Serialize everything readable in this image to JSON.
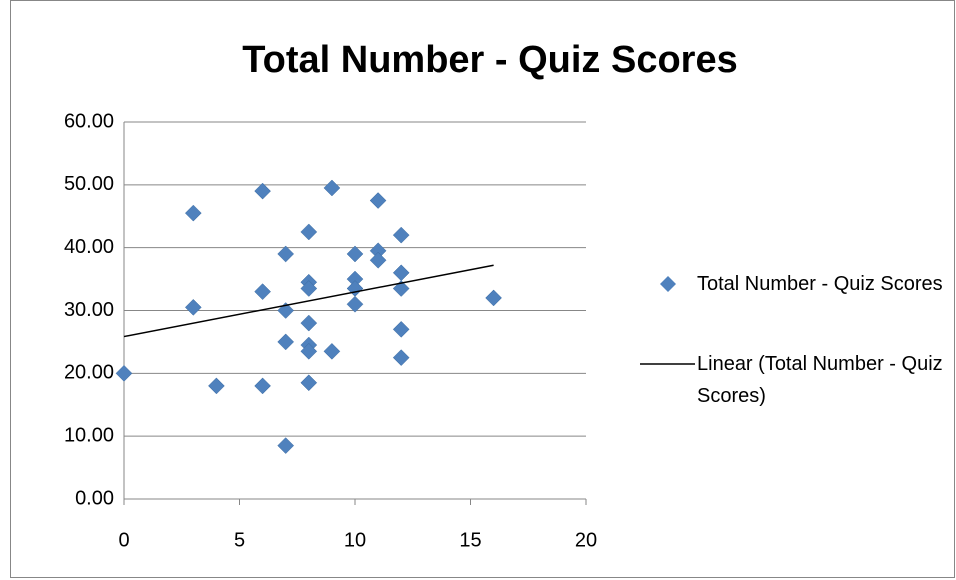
{
  "chart_data": {
    "type": "scatter",
    "title": "Total Number - Quiz Scores",
    "series": [
      {
        "name": "Total Number - Quiz Scores",
        "color": "#4f81bd",
        "x": [
          0,
          3,
          3,
          4,
          6,
          6,
          6,
          7,
          7,
          7,
          7,
          8,
          8,
          8,
          8,
          8,
          8,
          8,
          9,
          9,
          10,
          10,
          10,
          10,
          11,
          11,
          11,
          12,
          12,
          12,
          12,
          12,
          16
        ],
        "values": [
          20,
          45.5,
          30.5,
          18,
          49,
          33,
          18,
          39,
          30,
          25,
          8.5,
          42.5,
          34.5,
          33.5,
          28,
          24.5,
          23.5,
          18.5,
          49.5,
          23.5,
          39,
          35,
          33.5,
          31,
          47.5,
          39.5,
          38,
          42,
          36,
          33.5,
          27,
          22.5,
          32
        ]
      }
    ],
    "trendline": {
      "name": "Linear (Total Number - Quiz Scores)",
      "color": "#000000",
      "type": "linear"
    },
    "xlim": [
      0,
      20
    ],
    "xticks": [
      0,
      5,
      10,
      15,
      20
    ],
    "ylim": [
      0,
      60
    ],
    "yticks": [
      {
        "value": 0,
        "label": "0.00"
      },
      {
        "value": 10,
        "label": "10.00"
      },
      {
        "value": 20,
        "label": "20.00"
      },
      {
        "value": 30,
        "label": "30.00"
      },
      {
        "value": 40,
        "label": "40.00"
      },
      {
        "value": 50,
        "label": "50.00"
      },
      {
        "value": 60,
        "label": "60.00"
      }
    ],
    "grid": true,
    "legend": "right"
  }
}
